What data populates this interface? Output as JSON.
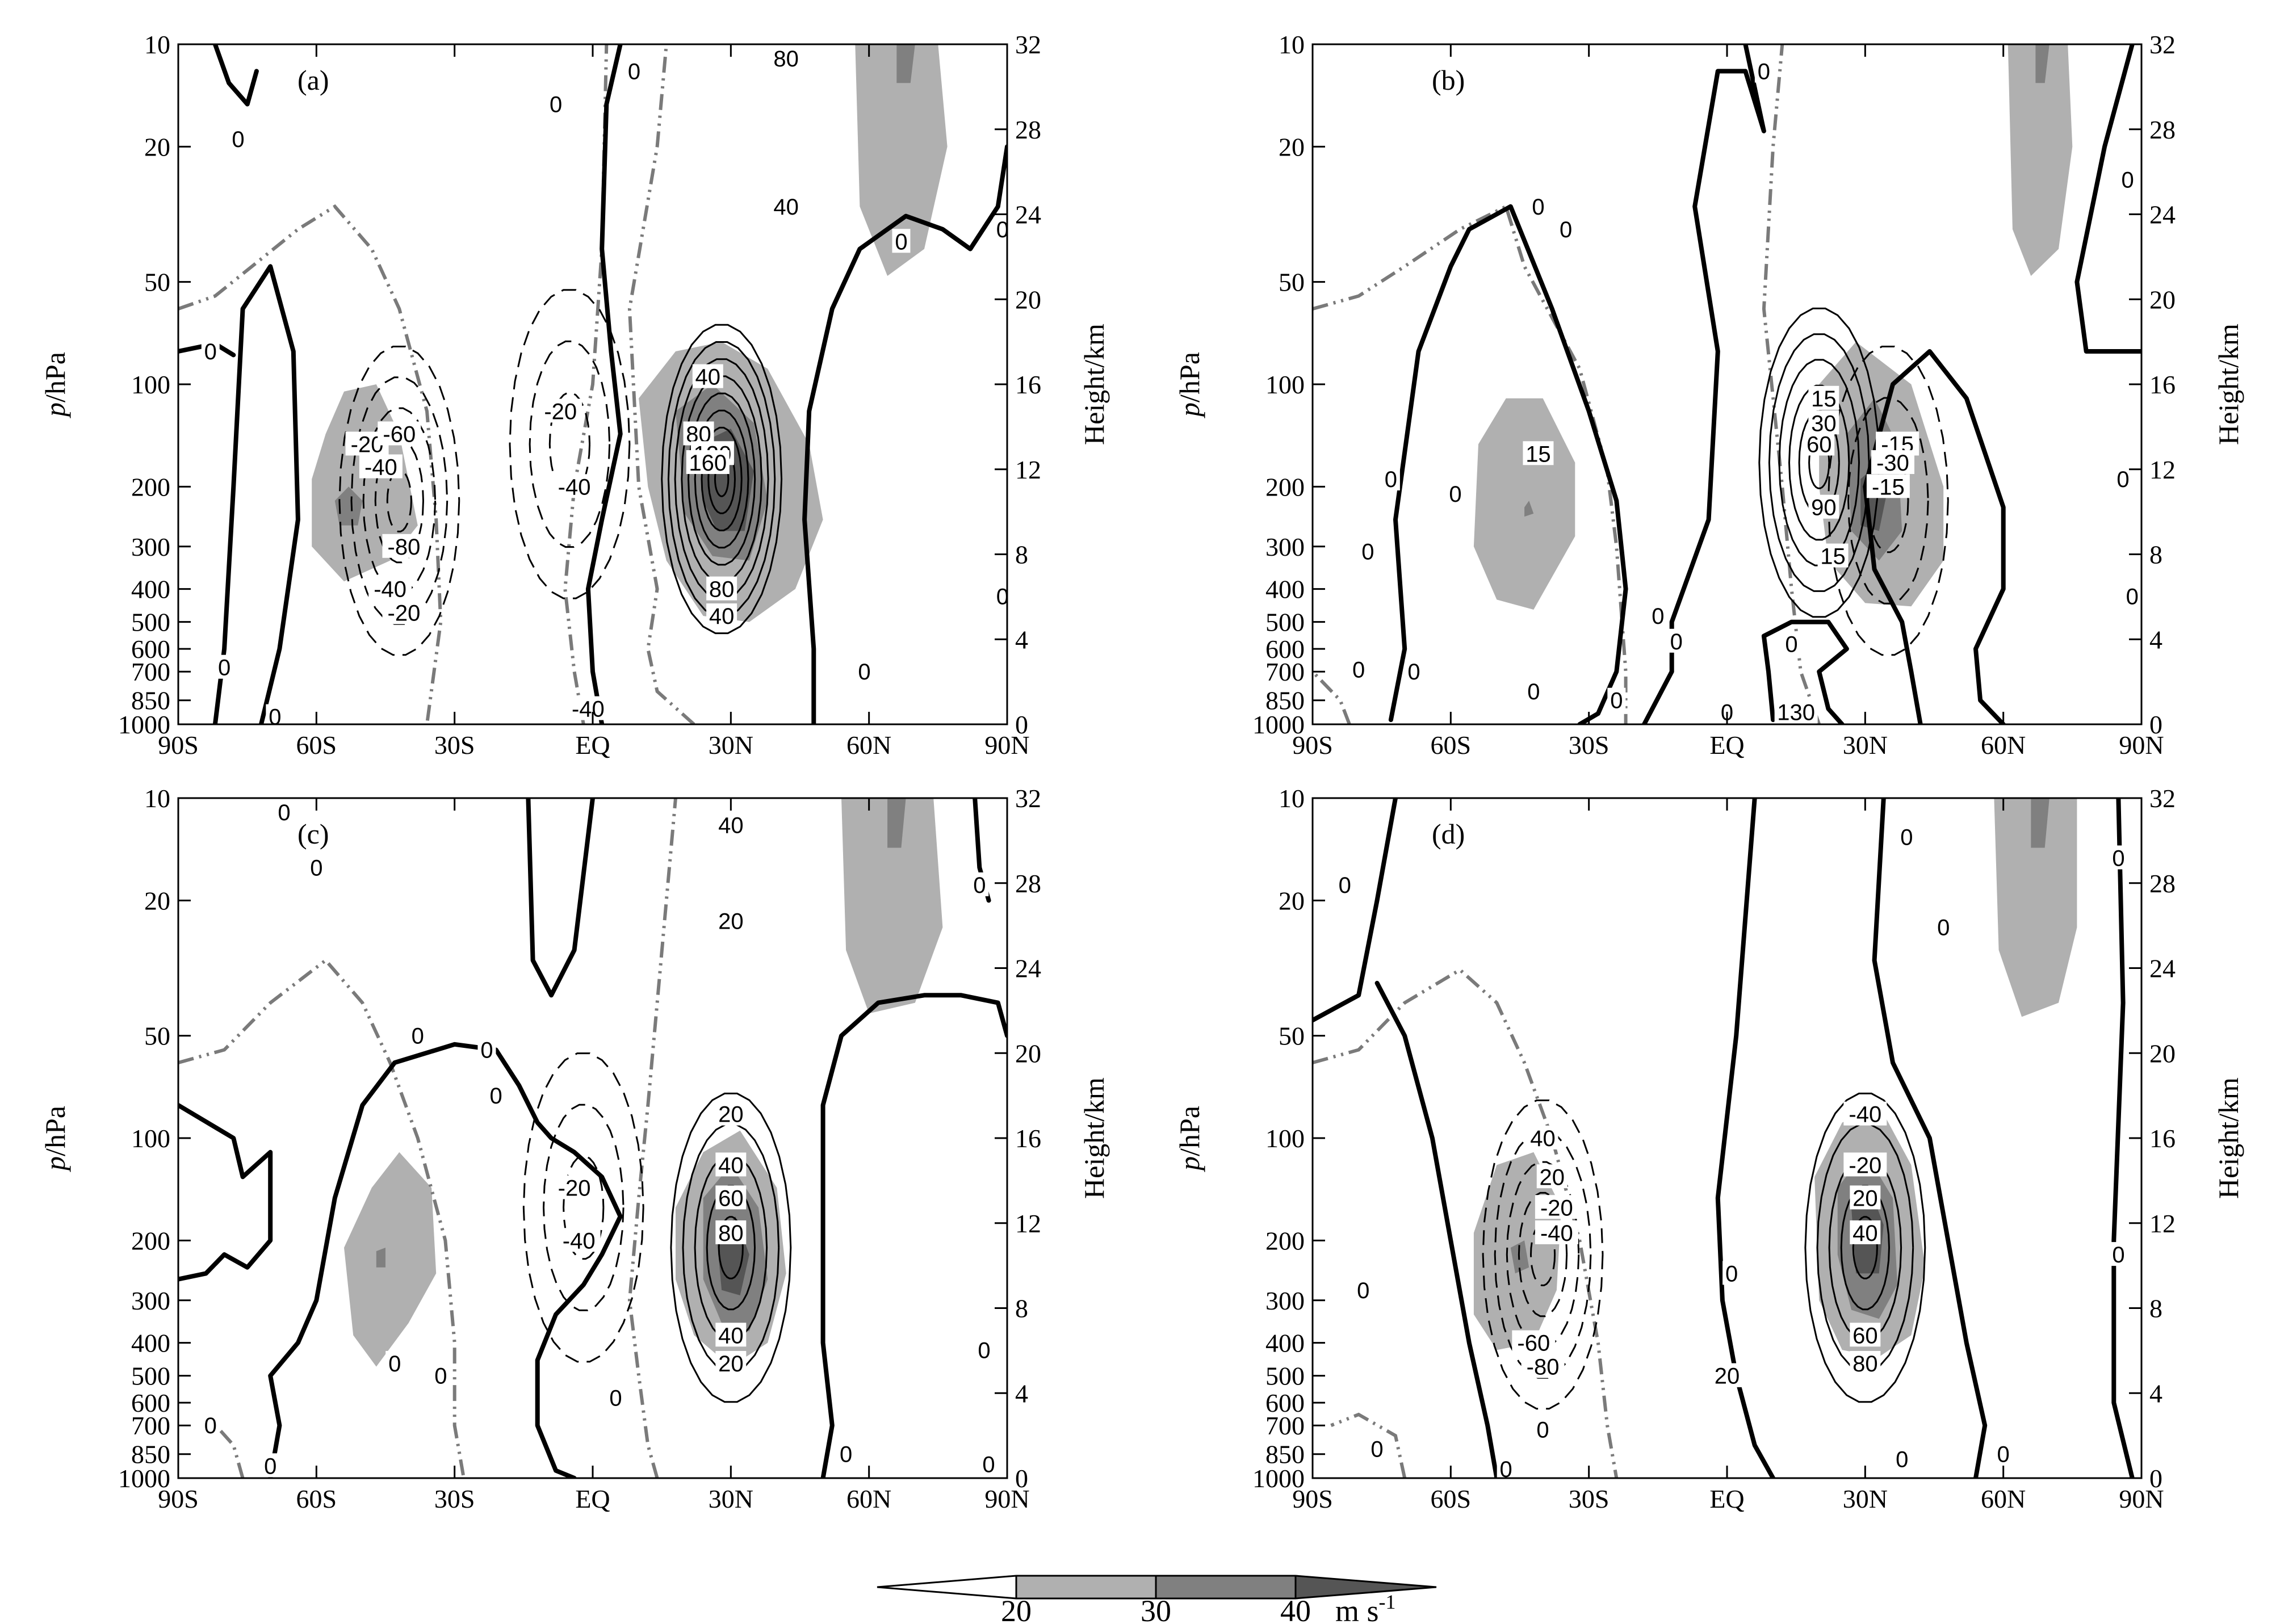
{
  "colors": {
    "shade_20": "#b0b0b0",
    "shade_30": "#808080",
    "shade_40": "#555555",
    "zero_line": "#000000",
    "reference_line": "#7a7a7a"
  },
  "chart_data": [
    {
      "type": "contour",
      "panel_label": "(a)",
      "xlabel": "",
      "ylabel": "p/hPa",
      "y2label": "Height/km",
      "x_ticks": [
        "90S",
        "60S",
        "30S",
        "EQ",
        "30N",
        "60N",
        "90N"
      ],
      "y_ticks": [
        "10",
        "20",
        "50",
        "100",
        "200",
        "300",
        "400",
        "500",
        "600",
        "700",
        "850",
        "1000"
      ],
      "y2_ticks": [
        "32",
        "28",
        "24",
        "20",
        "16",
        "12",
        "8",
        "4",
        "0"
      ],
      "contour_labels": [
        "0",
        "0",
        "0",
        "0",
        "0",
        "0",
        "0",
        "0",
        "0",
        "0",
        "-20",
        "-40",
        "-60",
        "-80",
        "-40",
        "-20",
        "-20",
        "-40",
        "40",
        "80",
        "120",
        "160",
        "80",
        "40",
        "80",
        "40",
        "-40"
      ],
      "xlim": [
        "90S",
        "90N"
      ],
      "ylim": [
        1000,
        10
      ],
      "y2lim": [
        0,
        32
      ],
      "positive_core": {
        "lat": 28,
        "p": 190
      },
      "negative_cores": [
        {
          "lat": -38,
          "p": 220
        },
        {
          "lat": -6,
          "p": 150
        }
      ],
      "shading_cores": [
        {
          "lat": 30,
          "p": 200,
          "max_level": 40
        },
        {
          "lat": -45,
          "p": 200,
          "max_level": 30
        },
        {
          "lat": 68,
          "p": 12,
          "max_level": 30
        }
      ]
    },
    {
      "type": "contour",
      "panel_label": "(b)",
      "xlabel": "",
      "ylabel": "p/hPa",
      "y2label": "Height/km",
      "x_ticks": [
        "90S",
        "60S",
        "30S",
        "EQ",
        "30N",
        "60N",
        "90N"
      ],
      "y_ticks": [
        "10",
        "20",
        "50",
        "100",
        "200",
        "300",
        "400",
        "500",
        "600",
        "700",
        "850",
        "1000"
      ],
      "y2_ticks": [
        "32",
        "28",
        "24",
        "20",
        "16",
        "12",
        "8",
        "4",
        "0"
      ],
      "contour_labels": [
        "0",
        "0",
        "0",
        "0",
        "0",
        "0",
        "0",
        "0",
        "0",
        "0",
        "0",
        "0",
        "0",
        "0",
        "0",
        "0",
        "0",
        "15",
        "15",
        "30",
        "60",
        "90",
        "15",
        "-15",
        "-30",
        "-15",
        "130"
      ],
      "xlim": [
        "90S",
        "90N"
      ],
      "ylim": [
        1000,
        10
      ],
      "y2lim": [
        0,
        32
      ],
      "positive_core": {
        "lat": 20,
        "p": 170
      },
      "negative_cores": [
        {
          "lat": 35,
          "p": 220
        }
      ],
      "shading_cores": [
        {
          "lat": 32,
          "p": 200,
          "max_level": 40
        },
        {
          "lat": -45,
          "p": 220,
          "max_level": 30
        },
        {
          "lat": 68,
          "p": 12,
          "max_level": 30
        }
      ]
    },
    {
      "type": "contour",
      "panel_label": "(c)",
      "xlabel": "",
      "ylabel": "p/hPa",
      "y2label": "Height/km",
      "x_ticks": [
        "90S",
        "60S",
        "30S",
        "EQ",
        "30N",
        "60N",
        "90N"
      ],
      "y_ticks": [
        "10",
        "20",
        "50",
        "100",
        "200",
        "300",
        "400",
        "500",
        "600",
        "700",
        "850",
        "1000"
      ],
      "y2_ticks": [
        "32",
        "28",
        "24",
        "20",
        "16",
        "12",
        "8",
        "4",
        "0"
      ],
      "contour_labels": [
        "0",
        "0",
        "0",
        "0",
        "0",
        "0",
        "0",
        "0",
        "0",
        "0",
        "0",
        "0",
        "0",
        "0",
        "40",
        "20",
        "-20",
        "-40",
        "20",
        "40",
        "60",
        "80",
        "40",
        "20"
      ],
      "xlim": [
        "90S",
        "90N"
      ],
      "ylim": [
        1000,
        10
      ],
      "y2lim": [
        0,
        32
      ],
      "positive_core": {
        "lat": 30,
        "p": 210
      },
      "negative_cores": [
        {
          "lat": -2,
          "p": 160
        }
      ],
      "shading_cores": [
        {
          "lat": 30,
          "p": 210,
          "max_level": 40
        },
        {
          "lat": -48,
          "p": 230,
          "max_level": 30
        },
        {
          "lat": 65,
          "p": 12,
          "max_level": 30
        }
      ]
    },
    {
      "type": "contour",
      "panel_label": "(d)",
      "xlabel": "",
      "ylabel": "p/hPa",
      "y2label": "Height/km",
      "x_ticks": [
        "90S",
        "60S",
        "30S",
        "EQ",
        "30N",
        "60N",
        "90N"
      ],
      "y_ticks": [
        "10",
        "20",
        "50",
        "100",
        "200",
        "300",
        "400",
        "500",
        "600",
        "700",
        "850",
        "1000"
      ],
      "y2_ticks": [
        "32",
        "28",
        "24",
        "20",
        "16",
        "12",
        "8",
        "4",
        "0"
      ],
      "contour_labels": [
        "0",
        "0",
        "0",
        "0",
        "0",
        "0",
        "0",
        "0",
        "0",
        "0",
        "0",
        "0",
        "40",
        "20",
        "-20",
        "-40",
        "-60",
        "-80",
        "-40",
        "-20",
        "20",
        "40",
        "60",
        "80",
        "40",
        "20"
      ],
      "xlim": [
        "90S",
        "90N"
      ],
      "ylim": [
        1000,
        10
      ],
      "y2lim": [
        0,
        32
      ],
      "positive_core": {
        "lat": 30,
        "p": 210
      },
      "negative_cores": [
        {
          "lat": -40,
          "p": 220
        }
      ],
      "shading_cores": [
        {
          "lat": 30,
          "p": 210,
          "max_level": 40
        },
        {
          "lat": -45,
          "p": 220,
          "max_level": 30
        },
        {
          "lat": 68,
          "p": 12,
          "max_level": 30
        }
      ]
    }
  ],
  "colorbar": {
    "levels": [
      "20",
      "30",
      "40"
    ],
    "unit": "m s",
    "unit_exponent": "-1",
    "colors": [
      "#ffffff",
      "#b0b0b0",
      "#808080",
      "#555555"
    ]
  }
}
